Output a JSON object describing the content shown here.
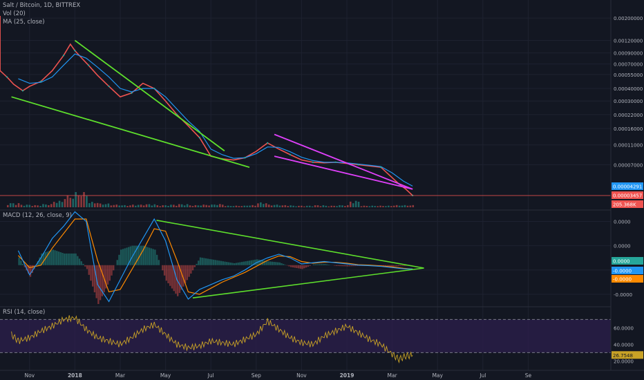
{
  "legend": {
    "symbol_line": "Salt / Bitcoin, 1D, BITTREX",
    "vol_line": "Vol (20)",
    "ma_line": "MA (25, close)",
    "macd_line": "MACD (12, 26, close, 9)",
    "rsi_line": "RSI (14, close)"
  },
  "colors": {
    "background": "#131722",
    "grid": "#1e2230",
    "axis_text": "#b2b5be",
    "candle_up": "#26a69a",
    "candle_down": "#ef5350",
    "ma_line": "#2196f3",
    "trend_green": "#5ee02c",
    "trend_magenta": "#e040fb",
    "macd_line": "#2196f3",
    "signal_line": "#ff8a00",
    "rsi_line": "#c9a226",
    "rsi_band": "#2a1e4a",
    "price_line": "#ef5350"
  },
  "chart_data": [
    {
      "type": "line",
      "pane": "price",
      "title": "Salt / Bitcoin, 1D, BITTREX",
      "price_scale_ticks": [
        "0.00200000",
        "0.00120000",
        "0.00090000",
        "0.00070000",
        "0.00055000",
        "0.00040000",
        "0.00030000",
        "0.00022000",
        "0.00016000",
        "0.00011000",
        "0.00007000"
      ],
      "price_scale_values": [
        0.002,
        0.0012,
        0.0009,
        0.0007,
        0.00055,
        0.0004,
        0.0003,
        0.00022,
        0.00016,
        0.00011,
        7e-05
      ],
      "x_ticks": [
        "Nov",
        "2018",
        "Mar",
        "May",
        "Jul",
        "Sep",
        "Nov",
        "2019",
        "Mar",
        "May",
        "Jul",
        "Se"
      ],
      "x_tick_months": [
        1,
        3,
        5,
        7,
        9,
        11,
        13,
        15,
        17,
        19,
        21,
        23
      ],
      "series": [
        {
          "label": "close",
          "x": [
            0,
            0.3,
            0.7,
            1,
            1.5,
            2,
            2.5,
            2.8,
            3,
            3.3,
            3.6,
            4,
            4.5,
            5,
            5.5,
            6,
            6.5,
            7,
            7.5,
            8,
            8.5,
            9,
            9.5,
            10,
            10.5,
            11,
            11.5,
            12,
            12.5,
            13,
            13.5,
            14,
            14.5,
            15,
            15.5,
            16,
            16.5,
            17,
            17.3,
            17.6,
            17.9
          ],
          "y": [
            0.00052,
            0.00044,
            0.00038,
            0.00042,
            0.00047,
            0.0006,
            0.00085,
            0.0011,
            0.00095,
            0.0008,
            0.00068,
            0.00054,
            0.00042,
            0.00033,
            0.00036,
            0.00045,
            0.0004,
            0.0003,
            0.00022,
            0.00017,
            0.00013,
            8.5e-05,
            8e-05,
            7.8e-05,
            8.2e-05,
            9.5e-05,
            0.000115,
            0.0001,
            8.8e-05,
            7.8e-05,
            7.4e-05,
            7.3e-05,
            7.4e-05,
            7.2e-05,
            7e-05,
            6.8e-05,
            6.6e-05,
            5.2e-05,
            4.5e-05,
            4e-05,
            3.46e-05
          ]
        },
        {
          "label": "MA (25, close)",
          "x": [
            0.5,
            1,
            1.5,
            2,
            2.5,
            3,
            3.5,
            4,
            4.5,
            5,
            5.5,
            6,
            6.5,
            7,
            7.5,
            8,
            8.5,
            9,
            9.5,
            10,
            10.5,
            11,
            11.5,
            12,
            12.5,
            13,
            13.5,
            14,
            14.5,
            15,
            15.5,
            16,
            16.5,
            17,
            17.5,
            17.9
          ],
          "y": [
            0.0005,
            0.00045,
            0.00046,
            0.00052,
            0.00068,
            0.00088,
            0.0008,
            0.00065,
            0.00052,
            0.0004,
            0.00037,
            0.0004,
            0.0004,
            0.00033,
            0.00025,
            0.00019,
            0.00015,
            0.0001,
            8.8e-05,
            8.1e-05,
            8.2e-05,
            9e-05,
            0.000105,
            0.000104,
            9.4e-05,
            8.3e-05,
            7.7e-05,
            7.4e-05,
            7.4e-05,
            7.3e-05,
            7.1e-05,
            6.9e-05,
            6.7e-05,
            5.8e-05,
            4.8e-05,
            4.29e-05
          ]
        }
      ],
      "volume": {
        "x": [
          0,
          0.5,
          1,
          1.5,
          2,
          2.5,
          3,
          3.5,
          4,
          4.5,
          5,
          5.5,
          6,
          6.5,
          7,
          7.5,
          8,
          8.5,
          9,
          9.5,
          10,
          10.5,
          11,
          11.5,
          12,
          12.5,
          13,
          13.5,
          14,
          14.5,
          15,
          15.5,
          16,
          16.5,
          17,
          17.5,
          17.9
        ],
        "y": [
          8,
          5,
          4,
          6,
          12,
          22,
          28,
          10,
          7,
          5,
          4,
          5,
          6,
          4,
          5,
          6,
          4,
          5,
          6,
          3,
          3,
          4,
          9,
          5,
          4,
          3,
          3,
          4,
          3,
          4,
          12,
          3,
          3,
          3,
          4,
          4,
          3
        ]
      },
      "trendlines": [
        {
          "color": "green",
          "x": [
            3.0,
            9.6
          ],
          "y": [
            0.0012,
            9.6e-05
          ]
        },
        {
          "color": "green",
          "x": [
            0.2,
            10.7
          ],
          "y": [
            0.00033,
            6.6e-05
          ]
        },
        {
          "color": "magenta",
          "x": [
            11.8,
            17.9
          ],
          "y": [
            0.00014,
            4e-05
          ]
        },
        {
          "color": "magenta",
          "x": [
            11.8,
            17.9
          ],
          "y": [
            8.5e-05,
            4e-05
          ]
        }
      ],
      "price_badges": [
        {
          "text": "0.00004291",
          "color": "#2196f3"
        },
        {
          "text": "0.00003457",
          "color": "#ef5350"
        },
        {
          "text": "205.368K",
          "color": "#ef5350"
        }
      ]
    },
    {
      "type": "line",
      "pane": "macd",
      "title": "MACD (12, 26, close, 9)",
      "y_ticks": [
        "0.0000",
        "0.0000",
        "0.0000",
        "-0.0000"
      ],
      "y_tick_values": [
        1.8,
        0.8,
        -0.2,
        -1.2
      ],
      "ylim": [
        -1.6,
        2.1
      ],
      "series": [
        {
          "label": "macd",
          "x": [
            0.5,
            1,
            1.5,
            2,
            2.5,
            3,
            3.5,
            4,
            4.5,
            5,
            5.5,
            6,
            6.5,
            7,
            7.5,
            8,
            8.5,
            9,
            9.5,
            10,
            10.5,
            11,
            11.5,
            12,
            12.5,
            13,
            13.5,
            14,
            14.5,
            15,
            15.5,
            16,
            16.5,
            17,
            17.5,
            17.9
          ],
          "y": [
            0.6,
            -0.4,
            0.3,
            1.1,
            1.6,
            2.2,
            1.8,
            -0.8,
            -1.5,
            -0.6,
            0.3,
            1.1,
            1.9,
            1.0,
            -0.6,
            -1.4,
            -1.0,
            -0.8,
            -0.6,
            -0.45,
            -0.2,
            0.1,
            0.3,
            0.45,
            0.3,
            0.05,
            0.1,
            0.15,
            0.1,
            0.05,
            0.0,
            -0.02,
            -0.05,
            -0.1,
            -0.15,
            -0.16
          ]
        },
        {
          "label": "signal",
          "x": [
            0.5,
            1,
            1.5,
            2,
            2.5,
            3,
            3.5,
            4,
            4.5,
            5,
            5.5,
            6,
            6.5,
            7,
            7.5,
            8,
            8.5,
            9,
            9.5,
            10,
            10.5,
            11,
            11.5,
            12,
            12.5,
            13,
            13.5,
            14,
            14.5,
            15,
            15.5,
            16,
            16.5,
            17,
            17.5,
            17.9
          ],
          "y": [
            0.4,
            -0.1,
            0.0,
            0.7,
            1.3,
            1.9,
            1.9,
            0.2,
            -1.1,
            -1.0,
            -0.2,
            0.6,
            1.5,
            1.4,
            0.2,
            -1.1,
            -1.2,
            -0.95,
            -0.7,
            -0.5,
            -0.3,
            -0.05,
            0.2,
            0.38,
            0.35,
            0.15,
            0.08,
            0.12,
            0.12,
            0.08,
            0.02,
            0.0,
            -0.03,
            -0.07,
            -0.13,
            -0.16
          ]
        }
      ],
      "trendlines": [
        {
          "color": "green",
          "x": [
            6.6,
            18.4
          ],
          "y": [
            1.85,
            -0.12
          ]
        },
        {
          "color": "green",
          "x": [
            8.2,
            18.4
          ],
          "y": [
            -1.35,
            -0.12
          ]
        }
      ],
      "badges": [
        {
          "text": "0.0000",
          "color": "#26a69a"
        },
        {
          "text": "-0.0000",
          "color": "#2196f3"
        },
        {
          "text": "-0.0000",
          "color": "#ff8a00"
        }
      ]
    },
    {
      "type": "line",
      "pane": "rsi",
      "title": "RSI (14, close)",
      "y_ticks": [
        "60.0000",
        "40.0000",
        "20.0000"
      ],
      "y_tick_values": [
        60,
        40,
        20
      ],
      "ylim": [
        12,
        82
      ],
      "band": [
        30,
        70
      ],
      "series": [
        {
          "label": "rsi",
          "x": [
            0.2,
            0.5,
            1,
            1.5,
            2,
            2.5,
            3,
            3.5,
            4,
            4.5,
            5,
            5.5,
            6,
            6.5,
            7,
            7.5,
            8,
            8.5,
            9,
            9.5,
            10,
            10.5,
            11,
            11.5,
            12,
            12.5,
            13,
            13.5,
            14,
            14.5,
            15,
            15.5,
            16,
            16.5,
            17,
            17.3,
            17.6,
            17.9
          ],
          "y": [
            52,
            44,
            48,
            56,
            62,
            70,
            72,
            58,
            48,
            44,
            40,
            48,
            58,
            64,
            52,
            40,
            36,
            38,
            44,
            42,
            40,
            46,
            52,
            68,
            58,
            48,
            42,
            40,
            50,
            56,
            62,
            54,
            46,
            40,
            28,
            22,
            26,
            26.75
          ]
        }
      ],
      "badges": [
        {
          "text": "26.7548",
          "color": "#c9a226"
        }
      ]
    }
  ]
}
